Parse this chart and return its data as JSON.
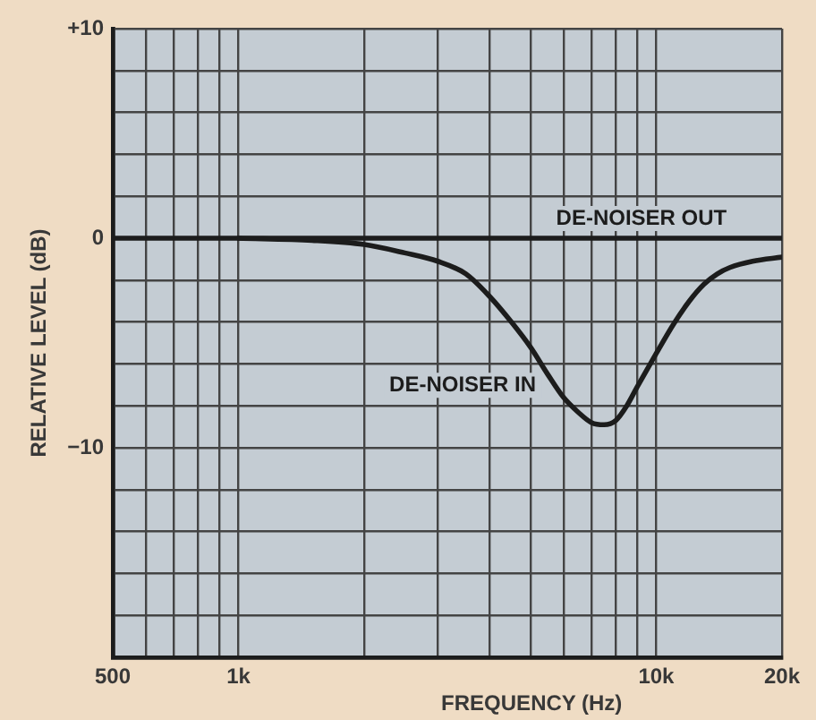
{
  "chart_data": {
    "type": "line",
    "xlabel": "FREQUENCY (Hz)",
    "ylabel": "RELATIVE LEVEL (dB)",
    "series": [
      {
        "name": "DE-NOISER OUT",
        "color": "#1c1c1c",
        "x": [
          500,
          20000
        ],
        "values": [
          0,
          0
        ]
      },
      {
        "name": "DE-NOISER IN",
        "color": "#1c1c1c",
        "x": [
          1000,
          1500,
          2000,
          2500,
          3000,
          3500,
          4000,
          4500,
          5000,
          5500,
          6000,
          6500,
          7000,
          7500,
          8000,
          8500,
          9000,
          10000,
          11000,
          12000,
          13000,
          14000,
          15000,
          17000,
          20000
        ],
        "values": [
          0,
          -0.1,
          -0.3,
          -0.7,
          -1.1,
          -1.7,
          -2.8,
          -4.0,
          -5.2,
          -6.5,
          -7.6,
          -8.3,
          -8.8,
          -8.9,
          -8.7,
          -8.0,
          -7.1,
          -5.5,
          -4.1,
          -3.0,
          -2.2,
          -1.7,
          -1.4,
          -1.1,
          -0.9
        ]
      }
    ],
    "log": "x",
    "xlim": [
      500,
      20000
    ],
    "xticks": [
      500,
      {
        "value": 600,
        "label": null
      },
      {
        "value": 700,
        "label": null
      },
      {
        "value": 800,
        "label": null
      },
      {
        "value": 900,
        "label": null
      },
      {
        "value": 1000,
        "label": "1k"
      },
      {
        "value": 2000,
        "label": null
      },
      {
        "value": 3000,
        "label": null
      },
      {
        "value": 4000,
        "label": null
      },
      {
        "value": 5000,
        "label": null
      },
      {
        "value": 6000,
        "label": null
      },
      {
        "value": 7000,
        "label": null
      },
      {
        "value": 8000,
        "label": null
      },
      {
        "value": 9000,
        "label": null
      },
      {
        "value": 10000,
        "label": "10k"
      },
      {
        "value": 20000,
        "label": "20k"
      }
    ],
    "ylim": [
      -20,
      10
    ],
    "yticks": [
      {
        "value": -20,
        "label": null
      },
      {
        "value": -18,
        "label": null
      },
      {
        "value": -16,
        "label": null
      },
      {
        "value": -14,
        "label": null
      },
      {
        "value": -12,
        "label": null
      },
      {
        "value": -10,
        "label": "−10"
      },
      {
        "value": -8,
        "label": null
      },
      {
        "value": -6,
        "label": null
      },
      {
        "value": -4,
        "label": null
      },
      {
        "value": -2,
        "label": null
      },
      0,
      {
        "value": 2,
        "label": null
      },
      {
        "value": 4,
        "label": null
      },
      {
        "value": 6,
        "label": null
      },
      {
        "value": 8,
        "label": null
      },
      {
        "value": 10,
        "label": "+10"
      }
    ],
    "grid": true,
    "legend": false,
    "marker": "none"
  }
}
